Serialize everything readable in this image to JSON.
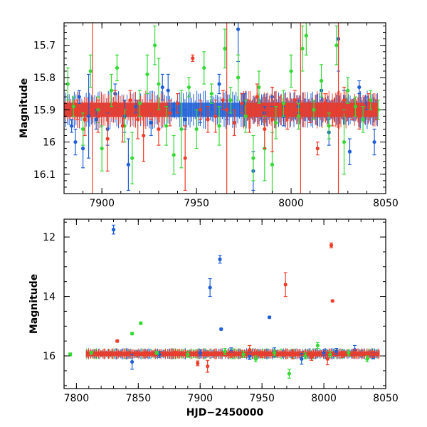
{
  "chart_data": [
    {
      "type": "scatter",
      "xlim": [
        7880,
        8050
      ],
      "ylim": [
        16.16,
        15.63
      ],
      "y_inverted": true,
      "grid": false,
      "ylabel": "Magnitude",
      "xlabel": "",
      "x_ticks": [
        "7900",
        "7950",
        "8000",
        "8050"
      ],
      "y_ticks": [
        "15.7",
        "15.8",
        "15.9",
        "16",
        "16.1"
      ],
      "series": [
        {
          "color": "#1f5fd6",
          "points": [
            [
              7884,
              15.95,
              0.02
            ],
            [
              7886,
              16.0,
              0.04
            ],
            [
              7888,
              15.86,
              0.02
            ],
            [
              7890,
              16.02,
              0.06
            ],
            [
              7893,
              15.92,
              0.13
            ],
            [
              7897,
              15.93,
              0.03
            ],
            [
              7903,
              15.96,
              0.05
            ],
            [
              7907,
              15.85,
              0.03
            ],
            [
              7912,
              15.92,
              0.05
            ],
            [
              7914,
              16.07,
              0.08
            ],
            [
              7918,
              15.89,
              0.02
            ],
            [
              7926,
              15.94,
              0.04
            ],
            [
              7932,
              15.83,
              0.04
            ],
            [
              7935,
              15.84,
              0.05
            ],
            [
              7938,
              15.9,
              0.02
            ],
            [
              7944,
              15.93,
              0.03
            ],
            [
              7952,
              15.91,
              0.03
            ],
            [
              7958,
              15.88,
              0.02
            ],
            [
              7962,
              15.82,
              0.03
            ],
            [
              7966,
              15.9,
              0.03
            ],
            [
              7972,
              15.65,
              0.1
            ],
            [
              7975,
              15.88,
              0.03
            ],
            [
              7980,
              16.09,
              0.06
            ],
            [
              7986,
              15.91,
              0.02
            ],
            [
              7990,
              15.86,
              0.03
            ],
            [
              7996,
              15.92,
              0.03
            ],
            [
              8004,
              15.89,
              0.02
            ],
            [
              8010,
              15.91,
              0.03
            ],
            [
              8016,
              15.84,
              0.03
            ],
            [
              8020,
              15.97,
              0.04
            ],
            [
              8025,
              15.68,
              0.1
            ],
            [
              8028,
              15.87,
              0.03
            ],
            [
              8031,
              16.03,
              0.04
            ],
            [
              8036,
              15.83,
              0.02
            ],
            [
              8040,
              15.88,
              0.02
            ],
            [
              8044,
              16.0,
              0.04
            ]
          ]
        },
        {
          "color": "#35d935",
          "points": [
            [
              7882,
              15.82,
              0.05
            ],
            [
              7885,
              15.89,
              0.03
            ],
            [
              7890,
              15.96,
              0.05
            ],
            [
              7894,
              15.78,
              0.05
            ],
            [
              7898,
              15.9,
              0.04
            ],
            [
              7900,
              16.02,
              0.07
            ],
            [
              7905,
              15.84,
              0.05
            ],
            [
              7908,
              15.77,
              0.04
            ],
            [
              7912,
              15.95,
              0.05
            ],
            [
              7916,
              16.05,
              0.08
            ],
            [
              7920,
              15.88,
              0.04
            ],
            [
              7924,
              15.79,
              0.06
            ],
            [
              7928,
              15.7,
              0.06
            ],
            [
              7930,
              15.82,
              0.08
            ],
            [
              7934,
              15.95,
              0.06
            ],
            [
              7938,
              16.04,
              0.06
            ],
            [
              7942,
              15.96,
              0.12
            ],
            [
              7946,
              15.83,
              0.03
            ],
            [
              7950,
              15.96,
              0.06
            ],
            [
              7954,
              15.77,
              0.05
            ],
            [
              7958,
              15.85,
              0.03
            ],
            [
              7962,
              15.95,
              0.06
            ],
            [
              7965,
              15.71,
              0.06
            ],
            [
              7968,
              15.87,
              0.04
            ],
            [
              7972,
              15.8,
              0.07
            ],
            [
              7976,
              15.92,
              0.05
            ],
            [
              7980,
              16.05,
              0.07
            ],
            [
              7983,
              15.83,
              0.05
            ],
            [
              7986,
              16.02,
              0.1
            ],
            [
              7990,
              16.07,
              0.1
            ],
            [
              7992,
              15.94,
              0.05
            ],
            [
              7996,
              15.88,
              0.04
            ],
            [
              8000,
              15.78,
              0.05
            ],
            [
              8004,
              15.92,
              0.04
            ],
            [
              8006,
              15.71,
              0.07
            ],
            [
              8008,
              15.67,
              0.06
            ],
            [
              8012,
              15.9,
              0.03
            ],
            [
              8016,
              15.81,
              0.05
            ],
            [
              8020,
              15.95,
              0.04
            ],
            [
              8024,
              15.7,
              0.06
            ],
            [
              8028,
              16.0,
              0.1
            ],
            [
              8030,
              15.84,
              0.04
            ],
            [
              8034,
              15.89,
              0.03
            ],
            [
              8038,
              15.93,
              0.04
            ],
            [
              8042,
              15.87,
              0.03
            ],
            [
              8046,
              15.9,
              0.03
            ]
          ]
        },
        {
          "color": "#f03c28",
          "points": [
            [
              7887,
              15.9,
              0.03
            ],
            [
              7891,
              15.93,
              0.05
            ],
            [
              7895,
              15.9,
              0.3
            ],
            [
              7898,
              15.92,
              0.05
            ],
            [
              7903,
              15.99,
              0.1
            ],
            [
              7907,
              15.88,
              0.04
            ],
            [
              7911,
              15.95,
              0.05
            ],
            [
              7915,
              15.87,
              0.03
            ],
            [
              7919,
              15.93,
              0.06
            ],
            [
              7922,
              15.98,
              0.08
            ],
            [
              7926,
              15.9,
              0.03
            ],
            [
              7930,
              15.96,
              0.05
            ],
            [
              7936,
              15.91,
              0.04
            ],
            [
              7940,
              15.88,
              0.03
            ],
            [
              7944,
              16.05,
              0.1
            ],
            [
              7948,
              15.74,
              0.01
            ],
            [
              7952,
              15.9,
              0.03
            ],
            [
              7956,
              15.93,
              0.04
            ],
            [
              7960,
              15.92,
              0.05
            ],
            [
              7964,
              15.87,
              0.03
            ],
            [
              7966,
              15.9,
              0.3
            ],
            [
              7970,
              15.94,
              0.04
            ],
            [
              7974,
              15.88,
              0.03
            ],
            [
              7978,
              15.92,
              0.05
            ],
            [
              7982,
              15.86,
              0.04
            ],
            [
              7986,
              15.96,
              0.06
            ],
            [
              7990,
              15.93,
              0.1
            ],
            [
              7994,
              15.89,
              0.03
            ],
            [
              7998,
              15.92,
              0.04
            ],
            [
              8002,
              15.87,
              0.03
            ],
            [
              8005,
              15.9,
              0.28
            ],
            [
              8010,
              15.91,
              0.03
            ],
            [
              8014,
              16.02,
              0.02
            ],
            [
              8018,
              15.88,
              0.03
            ],
            [
              8022,
              15.91,
              0.04
            ],
            [
              8025,
              15.9,
              0.3
            ],
            [
              8028,
              15.87,
              0.04
            ],
            [
              8032,
              15.9,
              0.03
            ],
            [
              8036,
              15.92,
              0.04
            ],
            [
              8041,
              15.88,
              0.03
            ],
            [
              8045,
              15.9,
              0.03
            ]
          ]
        }
      ],
      "band": {
        "center": 15.9,
        "halfwidth": 0.022,
        "segments": [
          {
            "color": "#1f5fd6",
            "x": [
              7880,
              8046
            ]
          },
          {
            "color": "#f03c28",
            "x": [
              7880,
              7935
            ]
          },
          {
            "color": "#f03c28",
            "x": [
              7975,
              8046
            ]
          }
        ]
      }
    },
    {
      "type": "scatter",
      "xlim": [
        7790,
        8050
      ],
      "ylim": [
        17.1,
        11.4
      ],
      "y_inverted": true,
      "grid": false,
      "ylabel": "Magnitude",
      "xlabel": "HJD−2450000",
      "x_ticks": [
        "7800",
        "7850",
        "7900",
        "7950",
        "8000",
        "8050"
      ],
      "y_ticks": [
        "12",
        "14",
        "16"
      ],
      "series": [
        {
          "color": "#1f5fd6",
          "points": [
            [
              7830,
              11.75,
              0.15
            ],
            [
              7845,
              16.2,
              0.25
            ],
            [
              7867,
              15.95,
              0.1
            ],
            [
              7900,
              15.9,
              0.1
            ],
            [
              7908,
              13.7,
              0.3
            ],
            [
              7916,
              12.75,
              0.13
            ],
            [
              7917,
              15.1,
              0.03
            ],
            [
              7925,
              15.85,
              0.12
            ],
            [
              7940,
              16.0,
              0.12
            ],
            [
              7956,
              14.7,
              0.03
            ],
            [
              7960,
              15.88,
              0.15
            ],
            [
              7982,
              16.1,
              0.18
            ],
            [
              8000,
              15.9,
              0.1
            ],
            [
              8010,
              15.85,
              0.1
            ],
            [
              8025,
              15.8,
              0.15
            ],
            [
              8040,
              16.0,
              0.1
            ]
          ]
        },
        {
          "color": "#35d935",
          "points": [
            [
              7795,
              15.95,
              0.05
            ],
            [
              7812,
              15.9,
              0.05
            ],
            [
              7845,
              15.25,
              0.04
            ],
            [
              7852,
              14.9,
              0.04
            ],
            [
              7865,
              15.9,
              0.05
            ],
            [
              7890,
              15.95,
              0.1
            ],
            [
              7920,
              15.85,
              0.1
            ],
            [
              7935,
              15.95,
              0.1
            ],
            [
              7945,
              16.1,
              0.1
            ],
            [
              7960,
              15.9,
              0.1
            ],
            [
              7972,
              16.6,
              0.15
            ],
            [
              7985,
              16.0,
              0.1
            ],
            [
              7995,
              15.65,
              0.1
            ],
            [
              8005,
              15.95,
              0.1
            ],
            [
              8020,
              15.9,
              0.1
            ],
            [
              8035,
              16.1,
              0.1
            ]
          ]
        },
        {
          "color": "#f03c28",
          "points": [
            [
              7833,
              15.5,
              0.04
            ],
            [
              7855,
              15.95,
              0.05
            ],
            [
              7880,
              15.9,
              0.05
            ],
            [
              7898,
              16.25,
              0.08
            ],
            [
              7906,
              16.35,
              0.2
            ],
            [
              7925,
              15.95,
              0.1
            ],
            [
              7940,
              15.8,
              0.15
            ],
            [
              7950,
              15.95,
              0.1
            ],
            [
              7969,
              13.6,
              0.4
            ],
            [
              7975,
              15.95,
              0.15
            ],
            [
              7990,
              16.05,
              0.1
            ],
            [
              8003,
              16.1,
              0.2
            ],
            [
              8006,
              12.28,
              0.08
            ],
            [
              8007,
              14.15,
              0.03
            ],
            [
              8015,
              15.95,
              0.1
            ],
            [
              8025,
              15.9,
              0.1
            ],
            [
              8040,
              15.95,
              0.1
            ]
          ]
        }
      ],
      "band": {
        "center": 15.93,
        "halfwidth": 0.07,
        "segments": [
          {
            "color": "#35d935",
            "x": [
              7808,
              8045
            ]
          },
          {
            "color": "#1f5fd6",
            "x": [
              7808,
              8045
            ]
          },
          {
            "color": "#f03c28",
            "x": [
              7808,
              8045
            ]
          }
        ]
      }
    }
  ]
}
